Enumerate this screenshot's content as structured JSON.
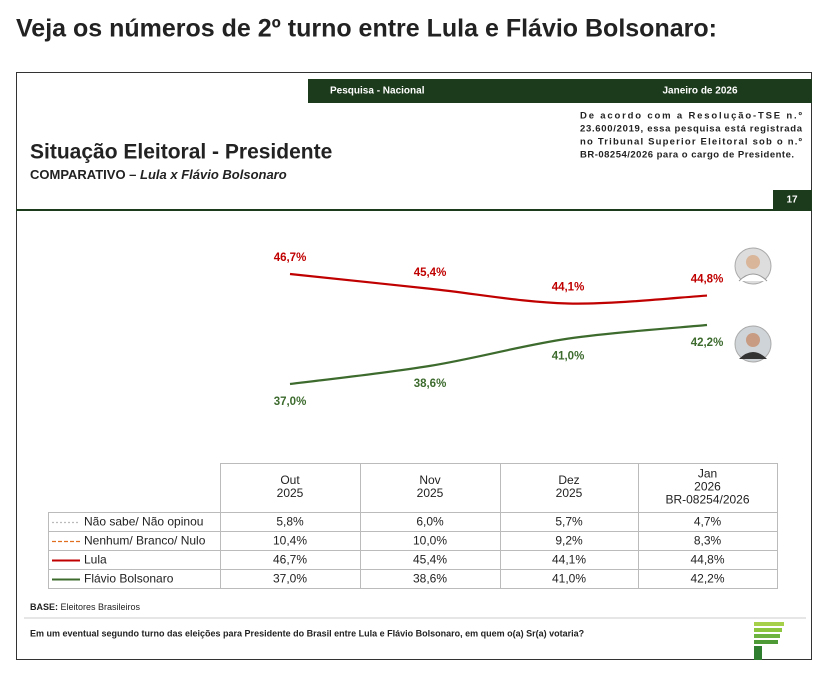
{
  "heading": "Veja os números de 2º turno entre Lula e Flávio Bolsonaro:",
  "slide": {
    "header_left": "Pesquisa - Nacional",
    "header_right": "Janeiro de 2026",
    "legal_lines": [
      "De acordo com a Resolução-TSE n.º",
      "23.600/2019, essa pesquisa está registrada",
      "no Tribunal Superior Eleitoral sob o n.º",
      "BR-08254/2026 para o cargo de Presidente."
    ],
    "title": "Situação Eleitoral - Presidente",
    "subtitle_prefix": "COMPARATIVO –",
    "subtitle_names": "Lula x Flávio Bolsonaro",
    "page_number": "17",
    "base_label": "BASE:",
    "base_text": "Eleitores Brasileiros",
    "question": "Em um eventual segundo turno das eleições para Presidente do Brasil entre Lula e Flávio Bolsonaro, em quem o(a) Sr(a) votaria?"
  },
  "chart_data": {
    "type": "line",
    "series": [
      {
        "name": "Lula",
        "color": "#c00000",
        "values": [
          46.7,
          45.4,
          44.1,
          44.8
        ],
        "value_labels": [
          "46,7%",
          "45,4%",
          "44,1%",
          "44,8%"
        ]
      },
      {
        "name": "Flávio Bolsonaro",
        "color": "#3d6b2e",
        "values": [
          37.0,
          38.6,
          41.0,
          42.2
        ],
        "value_labels": [
          "37,0%",
          "38,6%",
          "41,0%",
          "42,2%"
        ]
      }
    ]
  },
  "table": {
    "columns": [
      [
        "Out",
        "2025"
      ],
      [
        "Nov",
        "2025"
      ],
      [
        "Dez",
        "2025"
      ],
      [
        "Jan",
        "2026",
        "BR-08254/2026"
      ]
    ],
    "rows": [
      {
        "label": "Não sabe/ Não opinou",
        "color": "#bbbbbb",
        "dash": "2,2",
        "cells": [
          "5,8%",
          "6,0%",
          "5,7%",
          "4,7%"
        ]
      },
      {
        "label": "Nenhum/ Branco/ Nulo",
        "color": "#e07020",
        "dash": "4,2",
        "cells": [
          "10,4%",
          "10,0%",
          "9,2%",
          "8,3%"
        ]
      },
      {
        "label": "Lula",
        "color": "#c00000",
        "dash": "none",
        "cells": [
          "46,7%",
          "45,4%",
          "44,1%",
          "44,8%"
        ]
      },
      {
        "label": "Flávio Bolsonaro",
        "color": "#3d6b2e",
        "dash": "none",
        "cells": [
          "37,0%",
          "38,6%",
          "41,0%",
          "42,2%"
        ]
      }
    ]
  }
}
